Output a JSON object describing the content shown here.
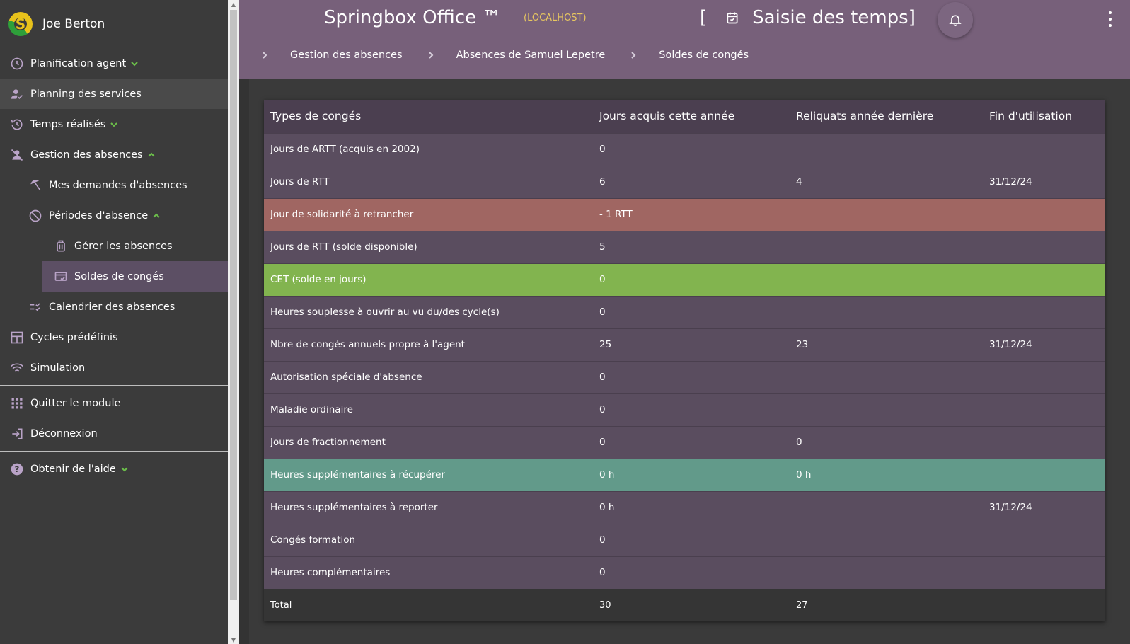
{
  "user": {
    "name": "Joe Berton"
  },
  "sidebar": {
    "items": [
      {
        "label": "Planification agent",
        "icon": "clock-icon",
        "level": 0,
        "expand": "down"
      },
      {
        "label": "Planning des services",
        "icon": "person-check-icon",
        "level": 0,
        "active": true
      },
      {
        "label": "Temps réalisés",
        "icon": "history-icon",
        "level": 0,
        "expand": "down"
      },
      {
        "label": "Gestion des absences",
        "icon": "person-off-icon",
        "level": 0,
        "expand": "up"
      },
      {
        "label": "Mes demandes d'absences",
        "icon": "beach-umbrella-icon",
        "level": 1
      },
      {
        "label": "Périodes d'absence",
        "icon": "event-busy-icon",
        "level": 1,
        "expand": "up"
      },
      {
        "label": "Gérer les absences",
        "icon": "luggage-icon",
        "level": 2
      },
      {
        "label": "Soldes de congés",
        "icon": "card-check-icon",
        "level": 2,
        "active": true
      },
      {
        "label": "Calendrier des absences",
        "icon": "checklist-icon",
        "level": 1
      },
      {
        "label": "Cycles prédéfinis",
        "icon": "dashboard-icon",
        "level": 0
      },
      {
        "label": "Simulation",
        "icon": "wifi-icon",
        "level": 0
      }
    ],
    "bottom_items": [
      {
        "label": "Quitter le module",
        "icon": "apps-grid-icon"
      },
      {
        "label": "Déconnexion",
        "icon": "logout-icon"
      }
    ],
    "help_item": {
      "label": "Obtenir de l'aide",
      "icon": "help-icon",
      "expand": "down"
    }
  },
  "header": {
    "app_title": "Springbox Office ™",
    "host": "(LOCALHOST)",
    "page_title_open": "[",
    "page_title": "Saisie des temps]",
    "breadcrumbs": [
      {
        "label": "Gestion des absences",
        "link": true
      },
      {
        "label": "Absences de Samuel Lepetre",
        "link": true
      },
      {
        "label": "Soldes de congés",
        "link": false
      }
    ]
  },
  "table": {
    "headers": [
      "Types de congés",
      "Jours acquis cette année",
      "Reliquats année dernière",
      "Fin d'utilisation"
    ],
    "rows": [
      {
        "cells": [
          "Jours de ARTT (acquis en 2002)",
          "0",
          "",
          ""
        ],
        "style": "r"
      },
      {
        "cells": [
          "Jours de RTT",
          "6",
          "4",
          "31/12/24"
        ],
        "style": "r"
      },
      {
        "cells": [
          "Jour de solidarité à retrancher",
          "- 1 RTT",
          "",
          ""
        ],
        "style": "red"
      },
      {
        "cells": [
          "Jours de RTT (solde disponible)",
          "5",
          "",
          ""
        ],
        "style": "r"
      },
      {
        "cells": [
          "CET (solde en jours)",
          "0",
          "",
          ""
        ],
        "style": "green"
      },
      {
        "cells": [
          "Heures souplesse à ouvrir au vu du/des cycle(s)",
          "0",
          "",
          ""
        ],
        "style": "r"
      },
      {
        "cells": [
          "Nbre de congés annuels propre à l'agent",
          "25",
          "23",
          "31/12/24"
        ],
        "style": "r"
      },
      {
        "cells": [
          "Autorisation spéciale d'absence",
          "0",
          "",
          ""
        ],
        "style": "r"
      },
      {
        "cells": [
          "Maladie ordinaire",
          "0",
          "",
          ""
        ],
        "style": "r"
      },
      {
        "cells": [
          "Jours de fractionnement",
          "0",
          "0",
          ""
        ],
        "style": "r"
      },
      {
        "cells": [
          "Heures supplémentaires à récupérer",
          "0 h",
          "0 h",
          ""
        ],
        "style": "teal"
      },
      {
        "cells": [
          "Heures supplémentaires à reporter",
          "0 h",
          "",
          "31/12/24"
        ],
        "style": "r"
      },
      {
        "cells": [
          "Congés formation",
          "0",
          "",
          ""
        ],
        "style": "r"
      },
      {
        "cells": [
          "Heures complémentaires",
          "0",
          "",
          ""
        ],
        "style": "r"
      }
    ],
    "total": [
      "Total",
      "30",
      "27",
      ""
    ]
  },
  "colors": {
    "header_bg": "#77607a",
    "sidebar_bg": "#3b3b3b",
    "row_bg": "#5a4d5f",
    "row_red": "#a06662",
    "row_green": "#82b44f",
    "row_teal": "#629a8a",
    "accent_green": "#6cc04a",
    "host_yellow": "#e8c760"
  }
}
